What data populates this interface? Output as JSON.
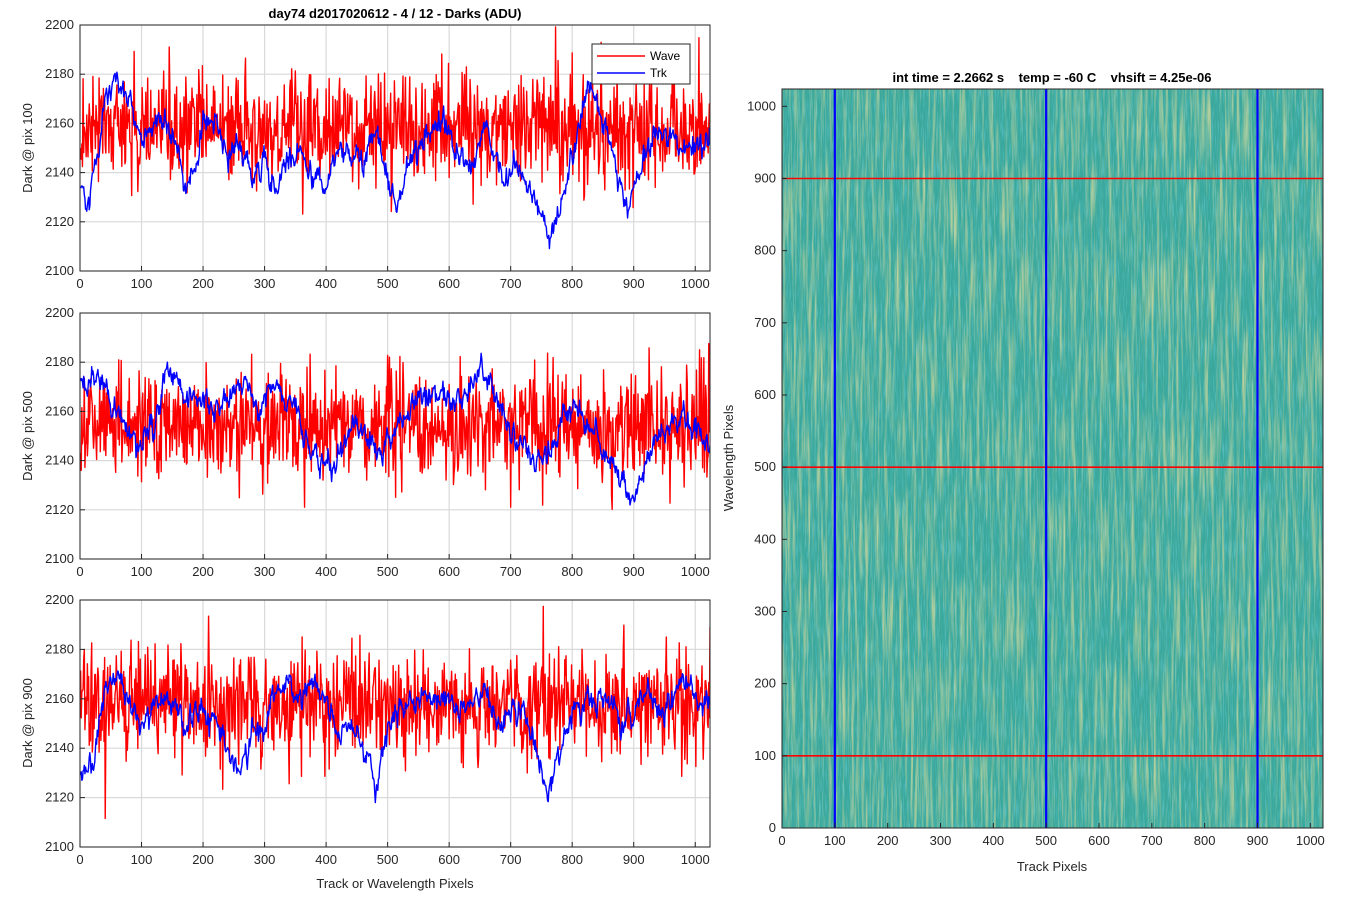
{
  "figure": {
    "title_left": "day74 d2017020612 - 4 / 12 - Darks (ADU)",
    "title_right": "int time = 2.2662 s    temp = -60 C    vhsift = 4.25e-06"
  },
  "colors": {
    "wave": "#ff0000",
    "trk": "#0000ff",
    "grid": "#d9d9d9",
    "axis": "#262626",
    "image_base": "#3aa89c",
    "image_bright": "#b8b655"
  },
  "chart_data": [
    {
      "type": "line",
      "title": "day74 d2017020612 - 4 / 12 - Darks (ADU)",
      "xlabel": "",
      "ylabel": "Dark @ pix 100",
      "xlim": [
        0,
        1024
      ],
      "ylim": [
        2100,
        2200
      ],
      "xticks": [
        "0",
        "100",
        "200",
        "300",
        "400",
        "500",
        "600",
        "700",
        "800",
        "900",
        "1000"
      ],
      "yticks": [
        "2100",
        "2120",
        "2140",
        "2160",
        "2180",
        "2200"
      ],
      "grid": true,
      "legend": {
        "placement": "top-right",
        "entries": [
          "Wave",
          "Trk"
        ]
      },
      "series": [
        {
          "name": "Wave",
          "color": "#ff0000",
          "mean": 2158,
          "noise": 11,
          "anchors": [
            [
              0,
              2158
            ],
            [
              512,
              2158
            ],
            [
              1024,
              2158
            ]
          ]
        },
        {
          "name": "Trk",
          "color": "#0000ff",
          "mean": 2150,
          "noise": 3.5,
          "anchors": [
            [
              0,
              2133
            ],
            [
              15,
              2125
            ],
            [
              40,
              2170
            ],
            [
              60,
              2180
            ],
            [
              80,
              2168
            ],
            [
              100,
              2155
            ],
            [
              140,
              2160
            ],
            [
              160,
              2150
            ],
            [
              170,
              2135
            ],
            [
              185,
              2140
            ],
            [
              200,
              2162
            ],
            [
              220,
              2158
            ],
            [
              240,
              2145
            ],
            [
              260,
              2150
            ],
            [
              280,
              2138
            ],
            [
              300,
              2145
            ],
            [
              320,
              2130
            ],
            [
              340,
              2148
            ],
            [
              360,
              2145
            ],
            [
              380,
              2140
            ],
            [
              400,
              2135
            ],
            [
              420,
              2150
            ],
            [
              440,
              2148
            ],
            [
              460,
              2145
            ],
            [
              480,
              2158
            ],
            [
              500,
              2138
            ],
            [
              515,
              2125
            ],
            [
              530,
              2145
            ],
            [
              560,
              2150
            ],
            [
              590,
              2160
            ],
            [
              620,
              2145
            ],
            [
              640,
              2140
            ],
            [
              660,
              2160
            ],
            [
              675,
              2148
            ],
            [
              690,
              2135
            ],
            [
              710,
              2145
            ],
            [
              730,
              2135
            ],
            [
              750,
              2120
            ],
            [
              770,
              2115
            ],
            [
              790,
              2135
            ],
            [
              810,
              2160
            ],
            [
              825,
              2175
            ],
            [
              840,
              2170
            ],
            [
              860,
              2150
            ],
            [
              875,
              2138
            ],
            [
              890,
              2125
            ],
            [
              910,
              2140
            ],
            [
              930,
              2158
            ],
            [
              960,
              2155
            ],
            [
              990,
              2150
            ],
            [
              1024,
              2155
            ]
          ]
        }
      ]
    },
    {
      "type": "line",
      "xlabel": "",
      "ylabel": "Dark @ pix 500",
      "xlim": [
        0,
        1024
      ],
      "ylim": [
        2100,
        2200
      ],
      "xticks": [
        "0",
        "100",
        "200",
        "300",
        "400",
        "500",
        "600",
        "700",
        "800",
        "900",
        "1000"
      ],
      "yticks": [
        "2100",
        "2120",
        "2140",
        "2160",
        "2180",
        "2200"
      ],
      "grid": true,
      "series": [
        {
          "name": "Wave",
          "color": "#ff0000",
          "mean": 2154,
          "noise": 11,
          "anchors": [
            [
              0,
              2154
            ],
            [
              512,
              2154
            ],
            [
              1024,
              2154
            ]
          ]
        },
        {
          "name": "Trk",
          "color": "#0000ff",
          "mean": 2160,
          "noise": 3.5,
          "anchors": [
            [
              0,
              2170
            ],
            [
              30,
              2172
            ],
            [
              60,
              2158
            ],
            [
              80,
              2150
            ],
            [
              100,
              2145
            ],
            [
              120,
              2152
            ],
            [
              140,
              2178
            ],
            [
              160,
              2170
            ],
            [
              190,
              2165
            ],
            [
              220,
              2160
            ],
            [
              250,
              2168
            ],
            [
              270,
              2172
            ],
            [
              290,
              2160
            ],
            [
              310,
              2170
            ],
            [
              330,
              2165
            ],
            [
              350,
              2160
            ],
            [
              370,
              2150
            ],
            [
              390,
              2135
            ],
            [
              410,
              2140
            ],
            [
              430,
              2148
            ],
            [
              450,
              2155
            ],
            [
              470,
              2148
            ],
            [
              490,
              2142
            ],
            [
              520,
              2155
            ],
            [
              550,
              2162
            ],
            [
              580,
              2168
            ],
            [
              600,
              2165
            ],
            [
              620,
              2165
            ],
            [
              650,
              2175
            ],
            [
              665,
              2172
            ],
            [
              680,
              2165
            ],
            [
              700,
              2150
            ],
            [
              720,
              2145
            ],
            [
              740,
              2140
            ],
            [
              760,
              2140
            ],
            [
              780,
              2155
            ],
            [
              800,
              2162
            ],
            [
              820,
              2160
            ],
            [
              840,
              2150
            ],
            [
              860,
              2140
            ],
            [
              880,
              2130
            ],
            [
              900,
              2125
            ],
            [
              920,
              2140
            ],
            [
              940,
              2150
            ],
            [
              960,
              2155
            ],
            [
              980,
              2158
            ],
            [
              1000,
              2152
            ],
            [
              1024,
              2145
            ]
          ]
        }
      ]
    },
    {
      "type": "line",
      "xlabel": "Track or Wavelength Pixels",
      "ylabel": "Dark @ pix 900",
      "xlim": [
        0,
        1024
      ],
      "ylim": [
        2100,
        2200
      ],
      "xticks": [
        "0",
        "100",
        "200",
        "300",
        "400",
        "500",
        "600",
        "700",
        "800",
        "900",
        "1000"
      ],
      "yticks": [
        "2100",
        "2120",
        "2140",
        "2160",
        "2180",
        "2200"
      ],
      "grid": true,
      "series": [
        {
          "name": "Wave",
          "color": "#ff0000",
          "mean": 2157,
          "noise": 11,
          "anchors": [
            [
              0,
              2157
            ],
            [
              512,
              2157
            ],
            [
              1024,
              2157
            ]
          ]
        },
        {
          "name": "Trk",
          "color": "#0000ff",
          "mean": 2155,
          "noise": 3.5,
          "anchors": [
            [
              0,
              2132
            ],
            [
              20,
              2130
            ],
            [
              40,
              2162
            ],
            [
              60,
              2170
            ],
            [
              80,
              2160
            ],
            [
              100,
              2150
            ],
            [
              120,
              2158
            ],
            [
              150,
              2160
            ],
            [
              170,
              2148
            ],
            [
              190,
              2155
            ],
            [
              220,
              2150
            ],
            [
              240,
              2138
            ],
            [
              260,
              2128
            ],
            [
              280,
              2150
            ],
            [
              300,
              2148
            ],
            [
              320,
              2160
            ],
            [
              340,
              2168
            ],
            [
              360,
              2162
            ],
            [
              380,
              2165
            ],
            [
              400,
              2158
            ],
            [
              420,
              2145
            ],
            [
              440,
              2150
            ],
            [
              460,
              2140
            ],
            [
              480,
              2125
            ],
            [
              500,
              2148
            ],
            [
              520,
              2155
            ],
            [
              550,
              2160
            ],
            [
              580,
              2160
            ],
            [
              600,
              2158
            ],
            [
              620,
              2158
            ],
            [
              640,
              2160
            ],
            [
              660,
              2162
            ],
            [
              680,
              2150
            ],
            [
              700,
              2155
            ],
            [
              720,
              2155
            ],
            [
              740,
              2140
            ],
            [
              760,
              2122
            ],
            [
              780,
              2140
            ],
            [
              800,
              2155
            ],
            [
              820,
              2160
            ],
            [
              840,
              2158
            ],
            [
              860,
              2160
            ],
            [
              880,
              2150
            ],
            [
              900,
              2155
            ],
            [
              920,
              2165
            ],
            [
              940,
              2155
            ],
            [
              960,
              2158
            ],
            [
              980,
              2168
            ],
            [
              1000,
              2162
            ],
            [
              1024,
              2158
            ]
          ]
        }
      ]
    },
    {
      "type": "heatmap",
      "title": "int time = 2.2662 s    temp = -60 C    vhsift = 4.25e-06",
      "xlabel": "Track Pixels",
      "ylabel": "Wavelength Pixels",
      "xlim": [
        0,
        1024
      ],
      "ylim": [
        0,
        1024
      ],
      "xticks": [
        "0",
        "100",
        "200",
        "300",
        "400",
        "500",
        "600",
        "700",
        "800",
        "900",
        "1000"
      ],
      "yticks": [
        "0",
        "100",
        "200",
        "300",
        "400",
        "500",
        "600",
        "700",
        "800",
        "900",
        "1000"
      ],
      "vertical_markers": {
        "color": "#0000ff",
        "x": [
          100,
          500,
          900
        ]
      },
      "horizontal_markers": {
        "color": "#ff0000",
        "y": [
          100,
          500,
          900
        ]
      }
    }
  ]
}
